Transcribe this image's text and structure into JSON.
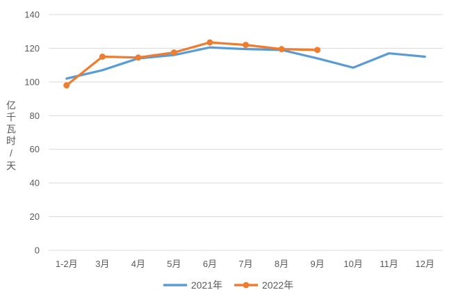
{
  "chart_data": {
    "type": "line",
    "title": "",
    "ylabel": "亿千瓦时/天",
    "xlabel": "",
    "categories": [
      "1-2月",
      "3月",
      "4月",
      "5月",
      "6月",
      "7月",
      "8月",
      "9月",
      "10月",
      "11月",
      "12月"
    ],
    "series": [
      {
        "name": "2021年",
        "color": "#5B9BD5",
        "marker": false,
        "values": [
          102,
          107,
          114,
          116,
          120.5,
          119.5,
          119,
          114,
          108.5,
          117,
          115
        ]
      },
      {
        "name": "2022年",
        "color": "#ED7D31",
        "marker": true,
        "values": [
          98,
          115,
          114.5,
          117.5,
          123.5,
          122,
          119.5,
          119
        ]
      }
    ],
    "ylim": [
      0,
      140
    ],
    "yticks": [
      0,
      20,
      40,
      60,
      80,
      100,
      120,
      140
    ],
    "grid": "horizontal",
    "grid_color": "#D9D9D9",
    "axis_text_color": "#595959",
    "legend_position": "bottom"
  }
}
